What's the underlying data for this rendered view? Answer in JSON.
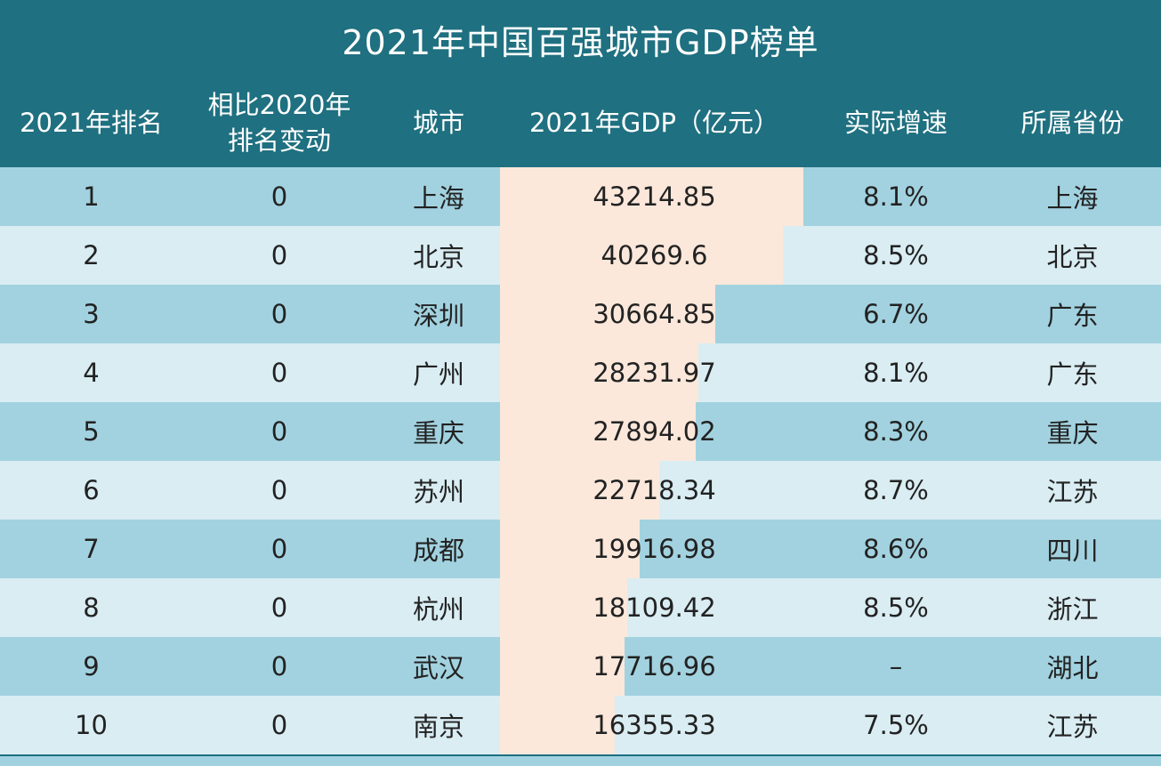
{
  "chart_data": {
    "type": "table",
    "title": "2021年中国百强城市GDP榜单",
    "columns": [
      "2021年排名",
      "相比2020年\n排名变动",
      "城市",
      "2021年GDP（亿元）",
      "实际增速",
      "所属省份"
    ],
    "rows": [
      [
        "1",
        "0",
        "上海",
        "43214.85",
        "8.1%",
        "上海"
      ],
      [
        "2",
        "0",
        "北京",
        "40269.6",
        "8.5%",
        "北京"
      ],
      [
        "3",
        "0",
        "深圳",
        "30664.85",
        "6.7%",
        "广东"
      ],
      [
        "4",
        "0",
        "广州",
        "28231.97",
        "8.1%",
        "广东"
      ],
      [
        "5",
        "0",
        "重庆",
        "27894.02",
        "8.3%",
        "重庆"
      ],
      [
        "6",
        "0",
        "苏州",
        "22718.34",
        "8.7%",
        "江苏"
      ],
      [
        "7",
        "0",
        "成都",
        "19916.98",
        "8.6%",
        "四川"
      ],
      [
        "8",
        "0",
        "杭州",
        "18109.42",
        "8.5%",
        "浙江"
      ],
      [
        "9",
        "0",
        "武汉",
        "17716.96",
        "–",
        "湖北"
      ],
      [
        "10",
        "0",
        "南京",
        "16355.33",
        "7.5%",
        "江苏"
      ]
    ],
    "gdp_values": [
      43214.85,
      40269.6,
      30664.85,
      28231.97,
      27894.02,
      22718.34,
      19916.98,
      18109.42,
      17716.96,
      16355.33
    ],
    "bar_max": 43214.85
  },
  "colors": {
    "header_bg": "#1f7080",
    "row_odd": "#a2d2e0",
    "row_even": "#d9edf3",
    "bar_fill": "#fbe8db"
  }
}
